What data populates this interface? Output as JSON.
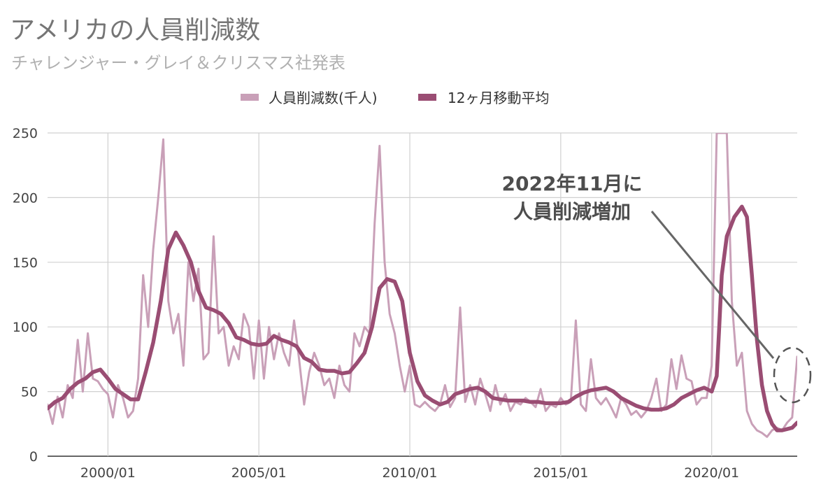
{
  "chart_data": {
    "type": "line",
    "title": "アメリカの人員削減数",
    "subtitle": "チャレンジャー・グレイ＆クリスマス社発表",
    "ylim": [
      0,
      250
    ],
    "y_ticks": [
      0,
      50,
      100,
      150,
      200,
      250
    ],
    "x_ticks": [
      "2000/01",
      "2005/01",
      "2010/01",
      "2015/01",
      "2020/01"
    ],
    "x_range": [
      "1998/01",
      "2022/11"
    ],
    "grid": true,
    "legend_position": "top",
    "colors": {
      "monthly": "#c9a0b8",
      "average": "#9a4d73",
      "grid": "#d0d0d0"
    },
    "annotation": {
      "lines": [
        "2022年11月に",
        "人員削減増加"
      ]
    },
    "series": [
      {
        "name": "人員削減数(千人)",
        "points": [
          [
            "1998/01",
            40
          ],
          [
            "1998/03",
            25
          ],
          [
            "1998/05",
            46
          ],
          [
            "1998/07",
            30
          ],
          [
            "1998/09",
            55
          ],
          [
            "1998/11",
            45
          ],
          [
            "1999/01",
            90
          ],
          [
            "1999/03",
            50
          ],
          [
            "1999/05",
            95
          ],
          [
            "1999/07",
            60
          ],
          [
            "1999/09",
            58
          ],
          [
            "1999/11",
            52
          ],
          [
            "2000/01",
            48
          ],
          [
            "2000/03",
            30
          ],
          [
            "2000/05",
            55
          ],
          [
            "2000/07",
            45
          ],
          [
            "2000/09",
            30
          ],
          [
            "2000/11",
            35
          ],
          [
            "2001/01",
            60
          ],
          [
            "2001/03",
            140
          ],
          [
            "2001/05",
            100
          ],
          [
            "2001/07",
            160
          ],
          [
            "2001/09",
            200
          ],
          [
            "2001/11",
            245
          ],
          [
            "2002/01",
            120
          ],
          [
            "2002/03",
            95
          ],
          [
            "2002/05",
            110
          ],
          [
            "2002/07",
            70
          ],
          [
            "2002/09",
            150
          ],
          [
            "2002/11",
            120
          ],
          [
            "2003/01",
            145
          ],
          [
            "2003/03",
            75
          ],
          [
            "2003/05",
            80
          ],
          [
            "2003/07",
            170
          ],
          [
            "2003/09",
            95
          ],
          [
            "2003/11",
            100
          ],
          [
            "2004/01",
            70
          ],
          [
            "2004/03",
            85
          ],
          [
            "2004/05",
            75
          ],
          [
            "2004/07",
            110
          ],
          [
            "2004/09",
            100
          ],
          [
            "2004/11",
            60
          ],
          [
            "2005/01",
            105
          ],
          [
            "2005/03",
            60
          ],
          [
            "2005/05",
            100
          ],
          [
            "2005/07",
            75
          ],
          [
            "2005/09",
            95
          ],
          [
            "2005/11",
            80
          ],
          [
            "2006/01",
            70
          ],
          [
            "2006/03",
            105
          ],
          [
            "2006/05",
            75
          ],
          [
            "2006/07",
            40
          ],
          [
            "2006/09",
            65
          ],
          [
            "2006/11",
            80
          ],
          [
            "2007/01",
            70
          ],
          [
            "2007/03",
            55
          ],
          [
            "2007/05",
            60
          ],
          [
            "2007/07",
            45
          ],
          [
            "2007/09",
            70
          ],
          [
            "2007/11",
            55
          ],
          [
            "2008/01",
            50
          ],
          [
            "2008/03",
            95
          ],
          [
            "2008/05",
            85
          ],
          [
            "2008/07",
            100
          ],
          [
            "2008/09",
            95
          ],
          [
            "2008/11",
            180
          ],
          [
            "2009/01",
            240
          ],
          [
            "2009/03",
            150
          ],
          [
            "2009/05",
            110
          ],
          [
            "2009/07",
            95
          ],
          [
            "2009/09",
            70
          ],
          [
            "2009/11",
            50
          ],
          [
            "2010/01",
            70
          ],
          [
            "2010/03",
            40
          ],
          [
            "2010/05",
            38
          ],
          [
            "2010/07",
            42
          ],
          [
            "2010/09",
            38
          ],
          [
            "2010/11",
            35
          ],
          [
            "2011/01",
            40
          ],
          [
            "2011/03",
            55
          ],
          [
            "2011/05",
            38
          ],
          [
            "2011/07",
            45
          ],
          [
            "2011/09",
            115
          ],
          [
            "2011/11",
            42
          ],
          [
            "2012/01",
            55
          ],
          [
            "2012/03",
            40
          ],
          [
            "2012/05",
            60
          ],
          [
            "2012/07",
            48
          ],
          [
            "2012/09",
            35
          ],
          [
            "2012/11",
            55
          ],
          [
            "2013/01",
            40
          ],
          [
            "2013/03",
            48
          ],
          [
            "2013/05",
            35
          ],
          [
            "2013/07",
            42
          ],
          [
            "2013/09",
            40
          ],
          [
            "2013/11",
            45
          ],
          [
            "2014/01",
            42
          ],
          [
            "2014/03",
            38
          ],
          [
            "2014/05",
            52
          ],
          [
            "2014/07",
            35
          ],
          [
            "2014/09",
            40
          ],
          [
            "2014/11",
            38
          ],
          [
            "2015/01",
            45
          ],
          [
            "2015/03",
            40
          ],
          [
            "2015/05",
            42
          ],
          [
            "2015/07",
            105
          ],
          [
            "2015/09",
            40
          ],
          [
            "2015/11",
            35
          ],
          [
            "2016/01",
            75
          ],
          [
            "2016/03",
            45
          ],
          [
            "2016/05",
            40
          ],
          [
            "2016/07",
            45
          ],
          [
            "2016/09",
            38
          ],
          [
            "2016/11",
            30
          ],
          [
            "2017/01",
            45
          ],
          [
            "2017/03",
            40
          ],
          [
            "2017/05",
            32
          ],
          [
            "2017/07",
            35
          ],
          [
            "2017/09",
            30
          ],
          [
            "2017/11",
            35
          ],
          [
            "2018/01",
            45
          ],
          [
            "2018/03",
            60
          ],
          [
            "2018/05",
            35
          ],
          [
            "2018/07",
            40
          ],
          [
            "2018/09",
            75
          ],
          [
            "2018/11",
            52
          ],
          [
            "2019/01",
            78
          ],
          [
            "2019/03",
            60
          ],
          [
            "2019/05",
            58
          ],
          [
            "2019/07",
            40
          ],
          [
            "2019/09",
            45
          ],
          [
            "2019/11",
            45
          ],
          [
            "2020/01",
            70
          ],
          [
            "2020/03",
            250
          ],
          [
            "2020/04",
            250
          ],
          [
            "2020/05",
            250
          ],
          [
            "2020/07",
            250
          ],
          [
            "2020/09",
            120
          ],
          [
            "2020/11",
            70
          ],
          [
            "2021/01",
            80
          ],
          [
            "2021/03",
            35
          ],
          [
            "2021/05",
            25
          ],
          [
            "2021/07",
            20
          ],
          [
            "2021/09",
            18
          ],
          [
            "2021/11",
            15
          ],
          [
            "2022/01",
            20
          ],
          [
            "2022/03",
            22
          ],
          [
            "2022/05",
            20
          ],
          [
            "2022/07",
            26
          ],
          [
            "2022/09",
            30
          ],
          [
            "2022/11",
            77
          ]
        ]
      },
      {
        "name": "12ヶ月移動平均",
        "points": [
          [
            "1998/01",
            37
          ],
          [
            "1998/04",
            42
          ],
          [
            "1998/07",
            45
          ],
          [
            "1998/10",
            52
          ],
          [
            "1999/01",
            57
          ],
          [
            "1999/04",
            60
          ],
          [
            "1999/07",
            65
          ],
          [
            "1999/10",
            67
          ],
          [
            "2000/01",
            60
          ],
          [
            "2000/04",
            52
          ],
          [
            "2000/07",
            48
          ],
          [
            "2000/10",
            44
          ],
          [
            "2001/01",
            44
          ],
          [
            "2001/04",
            65
          ],
          [
            "2001/07",
            88
          ],
          [
            "2001/10",
            120
          ],
          [
            "2002/01",
            160
          ],
          [
            "2002/04",
            173
          ],
          [
            "2002/07",
            163
          ],
          [
            "2002/10",
            150
          ],
          [
            "2003/01",
            128
          ],
          [
            "2003/04",
            115
          ],
          [
            "2003/07",
            113
          ],
          [
            "2003/10",
            110
          ],
          [
            "2004/01",
            103
          ],
          [
            "2004/04",
            92
          ],
          [
            "2004/07",
            90
          ],
          [
            "2004/10",
            87
          ],
          [
            "2005/01",
            86
          ],
          [
            "2005/04",
            87
          ],
          [
            "2005/07",
            93
          ],
          [
            "2005/10",
            90
          ],
          [
            "2006/01",
            88
          ],
          [
            "2006/04",
            85
          ],
          [
            "2006/07",
            76
          ],
          [
            "2006/10",
            73
          ],
          [
            "2007/01",
            67
          ],
          [
            "2007/04",
            66
          ],
          [
            "2007/07",
            66
          ],
          [
            "2007/10",
            64
          ],
          [
            "2008/01",
            65
          ],
          [
            "2008/04",
            72
          ],
          [
            "2008/07",
            80
          ],
          [
            "2008/10",
            100
          ],
          [
            "2009/01",
            130
          ],
          [
            "2009/04",
            137
          ],
          [
            "2009/07",
            135
          ],
          [
            "2009/10",
            120
          ],
          [
            "2010/01",
            80
          ],
          [
            "2010/04",
            58
          ],
          [
            "2010/07",
            47
          ],
          [
            "2010/10",
            43
          ],
          [
            "2011/01",
            40
          ],
          [
            "2011/04",
            42
          ],
          [
            "2011/07",
            48
          ],
          [
            "2011/10",
            50
          ],
          [
            "2012/01",
            52
          ],
          [
            "2012/04",
            53
          ],
          [
            "2012/07",
            50
          ],
          [
            "2012/10",
            45
          ],
          [
            "2013/01",
            44
          ],
          [
            "2013/04",
            43
          ],
          [
            "2013/07",
            43
          ],
          [
            "2013/10",
            43
          ],
          [
            "2014/01",
            42
          ],
          [
            "2014/04",
            42
          ],
          [
            "2014/07",
            41
          ],
          [
            "2014/10",
            41
          ],
          [
            "2015/01",
            41
          ],
          [
            "2015/04",
            42
          ],
          [
            "2015/07",
            46
          ],
          [
            "2015/10",
            49
          ],
          [
            "2016/01",
            51
          ],
          [
            "2016/04",
            52
          ],
          [
            "2016/07",
            53
          ],
          [
            "2016/10",
            50
          ],
          [
            "2017/01",
            45
          ],
          [
            "2017/04",
            42
          ],
          [
            "2017/07",
            39
          ],
          [
            "2017/10",
            37
          ],
          [
            "2018/01",
            36
          ],
          [
            "2018/04",
            36
          ],
          [
            "2018/07",
            37
          ],
          [
            "2018/10",
            40
          ],
          [
            "2019/01",
            45
          ],
          [
            "2019/04",
            48
          ],
          [
            "2019/07",
            51
          ],
          [
            "2019/10",
            53
          ],
          [
            "2020/01",
            50
          ],
          [
            "2020/03",
            62
          ],
          [
            "2020/04",
            100
          ],
          [
            "2020/05",
            140
          ],
          [
            "2020/07",
            170
          ],
          [
            "2020/10",
            185
          ],
          [
            "2021/01",
            193
          ],
          [
            "2021/03",
            185
          ],
          [
            "2021/05",
            140
          ],
          [
            "2021/07",
            90
          ],
          [
            "2021/09",
            55
          ],
          [
            "2021/11",
            35
          ],
          [
            "2022/01",
            25
          ],
          [
            "2022/03",
            20
          ],
          [
            "2022/05",
            20
          ],
          [
            "2022/07",
            21
          ],
          [
            "2022/09",
            22
          ],
          [
            "2022/11",
            26
          ]
        ]
      }
    ]
  }
}
